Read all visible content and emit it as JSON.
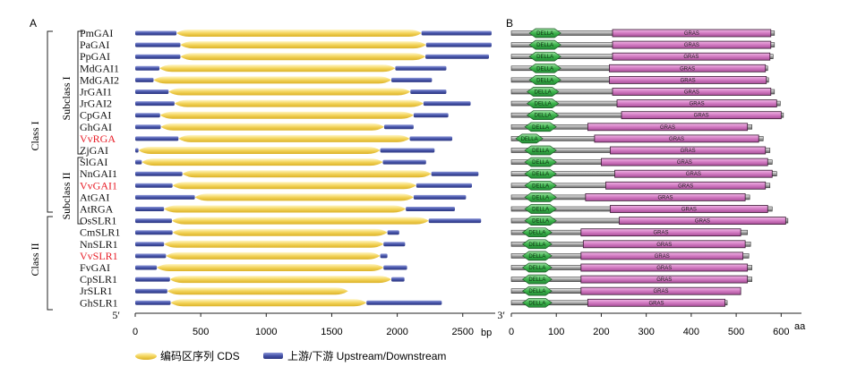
{
  "chart_data": [
    {
      "type": "bar",
      "panel_label": "A",
      "start_label": "5′",
      "end_label": "3′",
      "xlabel": "bp",
      "xlim": [
        0,
        2750
      ],
      "x_ticks": [
        0,
        500,
        1000,
        1500,
        2000,
        2500
      ],
      "class_labels": [
        "Class I",
        "Class II"
      ],
      "subclass_labels": [
        "Subclass I",
        "Subclass II"
      ],
      "highlight_color": "#e8202a",
      "cds_color": "#f5d868",
      "utr_color": "#4a56a8",
      "legend": {
        "cds": "编码区序列 CDS",
        "utr": "上游/下游 Upstream/Downstream"
      },
      "genes": [
        {
          "name": "PmGAI",
          "highlight": false,
          "utr5": [
            0,
            315
          ],
          "cds": [
            315,
            2185
          ],
          "utr3": [
            2185,
            2720
          ]
        },
        {
          "name": "PaGAI",
          "highlight": false,
          "utr5": [
            0,
            345
          ],
          "cds": [
            345,
            2220
          ],
          "utr3": [
            2220,
            2720
          ]
        },
        {
          "name": "PpGAI",
          "highlight": false,
          "utr5": [
            0,
            345
          ],
          "cds": [
            345,
            2215
          ],
          "utr3": [
            2215,
            2700
          ]
        },
        {
          "name": "MdGAI1",
          "highlight": false,
          "utr5": [
            0,
            185
          ],
          "cds": [
            185,
            1985
          ],
          "utr3": [
            1985,
            2375
          ]
        },
        {
          "name": "MdGAI2",
          "highlight": false,
          "utr5": [
            0,
            140
          ],
          "cds": [
            140,
            1955
          ],
          "utr3": [
            1955,
            2265
          ]
        },
        {
          "name": "JrGAI1",
          "highlight": false,
          "utr5": [
            0,
            255
          ],
          "cds": [
            255,
            2100
          ],
          "utr3": [
            2100,
            2375
          ]
        },
        {
          "name": "JrGAI2",
          "highlight": false,
          "utr5": [
            0,
            300
          ],
          "cds": [
            300,
            2200
          ],
          "utr3": [
            2200,
            2560
          ]
        },
        {
          "name": "CpGAI",
          "highlight": false,
          "utr5": [
            0,
            190
          ],
          "cds": [
            190,
            2125
          ],
          "utr3": [
            2125,
            2390
          ]
        },
        {
          "name": "GhGAI",
          "highlight": false,
          "utr5": [
            0,
            195
          ],
          "cds": [
            195,
            1900
          ],
          "utr3": [
            1900,
            2125
          ]
        },
        {
          "name": "VvRGA",
          "highlight": true,
          "utr5": [
            0,
            330
          ],
          "cds": [
            330,
            2095
          ],
          "utr3": [
            2095,
            2420
          ]
        },
        {
          "name": "ZjGAI",
          "highlight": false,
          "utr5": [
            0,
            25
          ],
          "cds": [
            25,
            1870
          ],
          "utr3": [
            1870,
            2285
          ]
        },
        {
          "name": "SlGAI",
          "highlight": false,
          "utr5": [
            0,
            50
          ],
          "cds": [
            50,
            1890
          ],
          "utr3": [
            1890,
            2220
          ]
        },
        {
          "name": "NnGAI1",
          "highlight": false,
          "utr5": [
            0,
            360
          ],
          "cds": [
            360,
            2260
          ],
          "utr3": [
            2260,
            2620
          ]
        },
        {
          "name": "VvGAI1",
          "highlight": true,
          "utr5": [
            0,
            285
          ],
          "cds": [
            285,
            2145
          ],
          "utr3": [
            2145,
            2570
          ]
        },
        {
          "name": "AtGAI",
          "highlight": false,
          "utr5": [
            0,
            455
          ],
          "cds": [
            455,
            2125
          ],
          "utr3": [
            2125,
            2525
          ]
        },
        {
          "name": "AtRGA",
          "highlight": false,
          "utr5": [
            0,
            220
          ],
          "cds": [
            220,
            2065
          ],
          "utr3": [
            2065,
            2440
          ]
        },
        {
          "name": "OsSLR1",
          "highlight": false,
          "utr5": [
            0,
            280
          ],
          "cds": [
            280,
            2240
          ],
          "utr3": [
            2240,
            2640
          ]
        },
        {
          "name": "CmSLR1",
          "highlight": false,
          "utr5": [
            0,
            285
          ],
          "cds": [
            285,
            1925
          ],
          "utr3": [
            1925,
            2015
          ]
        },
        {
          "name": "NnSLR1",
          "highlight": false,
          "utr5": [
            0,
            220
          ],
          "cds": [
            220,
            1895
          ],
          "utr3": [
            1895,
            2060
          ]
        },
        {
          "name": "VvSLR1",
          "highlight": true,
          "utr5": [
            0,
            235
          ],
          "cds": [
            235,
            1870
          ],
          "utr3": [
            1870,
            1925
          ]
        },
        {
          "name": "FvGAI",
          "highlight": false,
          "utr5": [
            0,
            165
          ],
          "cds": [
            165,
            1895
          ],
          "utr3": [
            1895,
            2075
          ]
        },
        {
          "name": "CpSLR1",
          "highlight": false,
          "utr5": [
            0,
            265
          ],
          "cds": [
            265,
            1955
          ],
          "utr3": [
            1955,
            2055
          ]
        },
        {
          "name": "JrSLR1",
          "highlight": false,
          "utr5": [
            0,
            245
          ],
          "cds": [
            245,
            1625
          ],
          "utr3": null
        },
        {
          "name": "GhSLR1",
          "highlight": false,
          "utr5": [
            0,
            270
          ],
          "cds": [
            270,
            1765
          ],
          "utr3": [
            1765,
            2340
          ]
        }
      ]
    },
    {
      "type": "bar",
      "panel_label": "B",
      "xlabel": "aa",
      "xlim": [
        0,
        630
      ],
      "x_ticks": [
        0,
        100,
        200,
        300,
        400,
        500,
        600
      ],
      "della_label": "DELLA",
      "gras_label": "GRAS",
      "della_color": "#33b14a",
      "gras_color": "#d678c8",
      "proteins": [
        {
          "name": "PmGAI",
          "length": 585,
          "della": [
            40,
            110
          ],
          "gras": [
            225,
            577
          ]
        },
        {
          "name": "PaGAI",
          "length": 585,
          "della": [
            40,
            110
          ],
          "gras": [
            225,
            577
          ]
        },
        {
          "name": "PpGAI",
          "length": 582,
          "della": [
            40,
            110
          ],
          "gras": [
            225,
            575
          ]
        },
        {
          "name": "MdGAI1",
          "length": 570,
          "della": [
            40,
            110
          ],
          "gras": [
            218,
            565
          ]
        },
        {
          "name": "MdGAI2",
          "length": 572,
          "della": [
            40,
            110
          ],
          "gras": [
            218,
            567
          ]
        },
        {
          "name": "JrGAI1",
          "length": 585,
          "della": [
            35,
            105
          ],
          "gras": [
            225,
            577
          ]
        },
        {
          "name": "JrGAI2",
          "length": 598,
          "della": [
            35,
            105
          ],
          "gras": [
            235,
            590
          ]
        },
        {
          "name": "CpGAI",
          "length": 605,
          "della": [
            35,
            105
          ],
          "gras": [
            245,
            600
          ]
        },
        {
          "name": "GhGAI",
          "length": 535,
          "della": [
            30,
            100
          ],
          "gras": [
            170,
            525
          ]
        },
        {
          "name": "VvRGA",
          "length": 560,
          "della": [
            10,
            70
          ],
          "gras": [
            185,
            550
          ]
        },
        {
          "name": "ZjGAI",
          "length": 575,
          "della": [
            30,
            100
          ],
          "gras": [
            220,
            565
          ]
        },
        {
          "name": "SlGAI",
          "length": 580,
          "della": [
            30,
            100
          ],
          "gras": [
            200,
            570
          ]
        },
        {
          "name": "NnGAI1",
          "length": 590,
          "della": [
            30,
            100
          ],
          "gras": [
            230,
            580
          ]
        },
        {
          "name": "VvGAI1",
          "length": 575,
          "della": [
            30,
            100
          ],
          "gras": [
            210,
            565
          ]
        },
        {
          "name": "AtGAI",
          "length": 530,
          "della": [
            30,
            100
          ],
          "gras": [
            165,
            520
          ]
        },
        {
          "name": "AtRGA",
          "length": 580,
          "della": [
            30,
            100
          ],
          "gras": [
            220,
            570
          ]
        },
        {
          "name": "OsSLR1",
          "length": 615,
          "della": [
            30,
            100
          ],
          "gras": [
            240,
            610
          ]
        },
        {
          "name": "CmSLR1",
          "length": 525,
          "della": [
            25,
            90
          ],
          "gras": [
            155,
            510
          ]
        },
        {
          "name": "NnSLR1",
          "length": 532,
          "della": [
            25,
            90
          ],
          "gras": [
            160,
            520
          ]
        },
        {
          "name": "VvSLR1",
          "length": 528,
          "della": [
            25,
            90
          ],
          "gras": [
            155,
            515
          ]
        },
        {
          "name": "FvGAI",
          "length": 535,
          "della": [
            25,
            90
          ],
          "gras": [
            155,
            525
          ]
        },
        {
          "name": "CpSLR1",
          "length": 535,
          "della": [
            25,
            90
          ],
          "gras": [
            155,
            525
          ]
        },
        {
          "name": "JrSLR1",
          "length": 510,
          "della": [
            25,
            90
          ],
          "gras": [
            155,
            510
          ]
        },
        {
          "name": "GhSLR1",
          "length": 480,
          "della": [
            25,
            90
          ],
          "gras": [
            170,
            475
          ]
        }
      ]
    }
  ]
}
